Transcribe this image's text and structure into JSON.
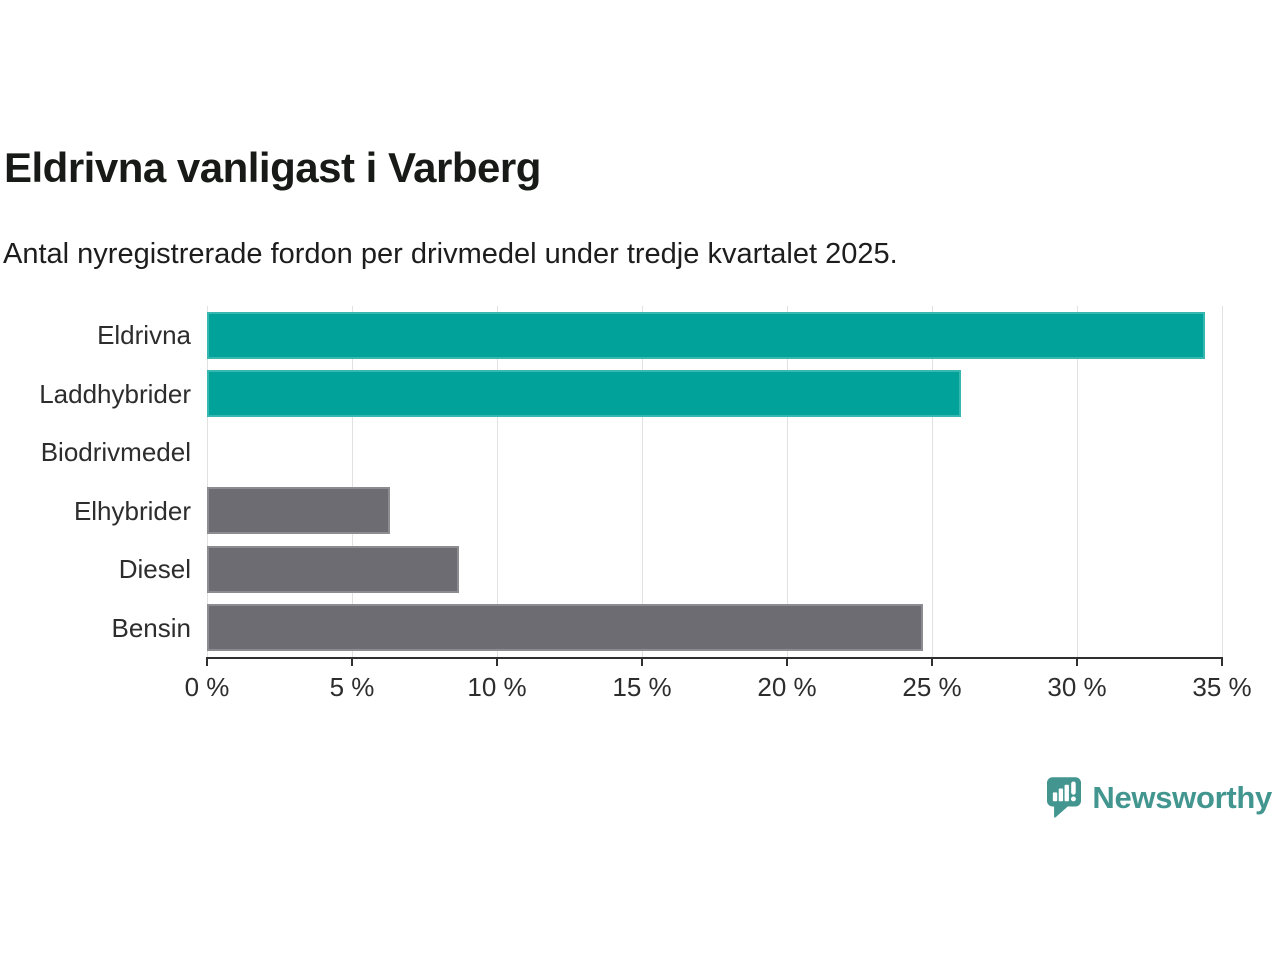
{
  "header": {
    "title": "Eldrivna vanligast i Varberg",
    "subtitle": "Antal nyregistrerade fordon per drivmedel under tredje kvartalet 2025."
  },
  "chart_data": {
    "type": "bar",
    "orientation": "horizontal",
    "title": "Eldrivna vanligast i Varberg",
    "subtitle": "Antal nyregistrerade fordon per drivmedel under tredje kvartalet 2025.",
    "categories": [
      "Eldrivna",
      "Laddhybrider",
      "Biodrivmedel",
      "Elhybrider",
      "Diesel",
      "Bensin"
    ],
    "values": [
      34.4,
      26.0,
      0,
      6.3,
      8.7,
      24.7
    ],
    "unit": "%",
    "bar_colors": [
      "#00a29a",
      "#00a29a",
      "#6c6c72",
      "#6c6c72",
      "#6c6c72",
      "#6c6c72"
    ],
    "xlim": [
      0,
      35
    ],
    "x_tick_step": 5,
    "x_tick_labels": [
      "0 %",
      "5 %",
      "10 %",
      "15 %",
      "20 %",
      "25 %",
      "30 %",
      "35 %"
    ],
    "grid": true,
    "legend": false
  },
  "colors": {
    "accent_teal": "#00a29a",
    "neutral_gray": "#6c6c72",
    "gridline": "#e1e1e1",
    "axis": "#303030",
    "logo_teal": "#42968f"
  },
  "branding": {
    "logo_text": "Newsworthy",
    "logo_icon": "bar-chart-speech-bubble-icon"
  }
}
